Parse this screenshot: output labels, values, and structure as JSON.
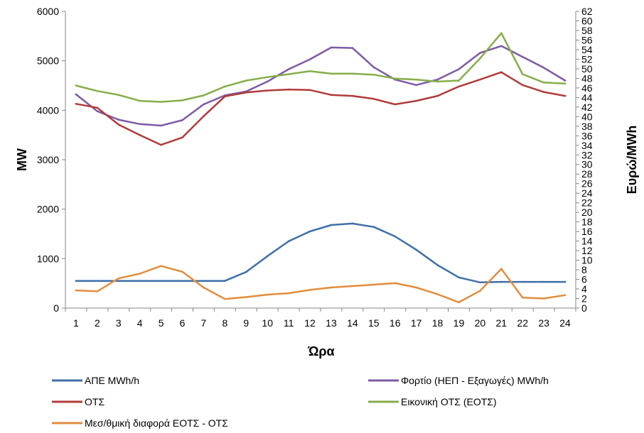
{
  "chart_data": {
    "type": "line",
    "title": "",
    "xlabel": "Ώρα",
    "ylabel": "MW",
    "y2label": "Ευρώ/MWh",
    "categories": [
      "1",
      "2",
      "3",
      "4",
      "5",
      "6",
      "7",
      "8",
      "9",
      "10",
      "11",
      "12",
      "13",
      "14",
      "15",
      "16",
      "17",
      "18",
      "19",
      "20",
      "21",
      "22",
      "23",
      "24"
    ],
    "ylim": [
      0,
      6000
    ],
    "yticks": [
      0,
      1000,
      2000,
      3000,
      4000,
      5000,
      6000
    ],
    "y2lim": [
      0,
      62
    ],
    "y2ticks": [
      0,
      2,
      4,
      6,
      8,
      10,
      12,
      14,
      16,
      18,
      20,
      22,
      24,
      26,
      28,
      30,
      32,
      34,
      36,
      38,
      40,
      42,
      44,
      46,
      48,
      50,
      52,
      54,
      56,
      58,
      60,
      62
    ],
    "grid": false,
    "legend_position": "bottom",
    "series": [
      {
        "name": "ΑΠΕ MWh/h",
        "axis": "left",
        "color": "#3e6fa8",
        "values": [
          550,
          550,
          550,
          550,
          550,
          550,
          550,
          550,
          730,
          1050,
          1350,
          1550,
          1680,
          1710,
          1640,
          1450,
          1180,
          870,
          620,
          520,
          530,
          530,
          530,
          530
        ]
      },
      {
        "name": "Φορτίο (ΗΕΠ - Εξαγωγές) MWh/h",
        "axis": "left",
        "color": "#7d5ba6",
        "values": [
          4320,
          3980,
          3810,
          3720,
          3690,
          3800,
          4120,
          4300,
          4380,
          4580,
          4830,
          5030,
          5270,
          5260,
          4870,
          4620,
          4510,
          4620,
          4830,
          5160,
          5300,
          5080,
          4860,
          4600
        ]
      },
      {
        "name": "ΟΤΣ",
        "axis": "left",
        "color": "#b03c3b",
        "values": [
          4130,
          4050,
          3710,
          3500,
          3300,
          3450,
          3880,
          4280,
          4360,
          4400,
          4420,
          4410,
          4310,
          4290,
          4230,
          4120,
          4190,
          4290,
          4480,
          4620,
          4770,
          4510,
          4370,
          4290
        ]
      },
      {
        "name": "Εικονική ΟΤΣ (ΕΟΤΣ)",
        "axis": "left",
        "color": "#86ad4a",
        "values": [
          4500,
          4390,
          4310,
          4190,
          4170,
          4200,
          4300,
          4480,
          4600,
          4670,
          4730,
          4790,
          4740,
          4740,
          4720,
          4640,
          4620,
          4580,
          4600,
          5050,
          5560,
          4730,
          4560,
          4540
        ]
      },
      {
        "name": "Μεσ/θμική διαφορά ΕΟΤΣ - ΟΤΣ",
        "axis": "right",
        "color": "#e28d3e",
        "values": [
          3.7,
          3.5,
          6.2,
          7.2,
          8.8,
          7.6,
          4.3,
          1.9,
          2.3,
          2.8,
          3.1,
          3.8,
          4.3,
          4.6,
          4.9,
          5.2,
          4.3,
          2.9,
          1.2,
          3.6,
          8.2,
          2.2,
          2.0,
          2.7
        ]
      }
    ]
  }
}
